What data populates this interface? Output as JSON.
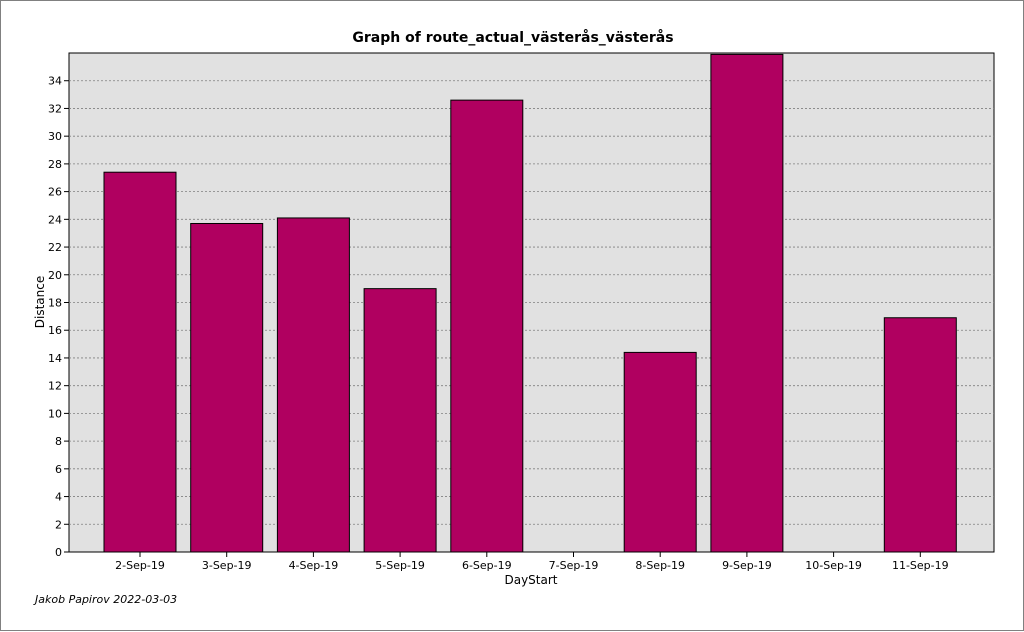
{
  "chart_data": {
    "type": "bar",
    "title": "Graph of route_actual_västerås_västerås",
    "xlabel": "DayStart",
    "ylabel": "Distance",
    "categories": [
      "2-Sep-19",
      "3-Sep-19",
      "4-Sep-19",
      "5-Sep-19",
      "6-Sep-19",
      "7-Sep-19",
      "8-Sep-19",
      "9-Sep-19",
      "10-Sep-19",
      "11-Sep-19"
    ],
    "values": [
      27.4,
      23.7,
      24.1,
      19.0,
      32.6,
      0,
      14.4,
      35.9,
      0,
      16.9
    ],
    "ylim": [
      0,
      36
    ],
    "yticks": [
      0,
      2,
      4,
      6,
      8,
      10,
      12,
      14,
      16,
      18,
      20,
      22,
      24,
      26,
      28,
      30,
      32,
      34
    ],
    "ytick_labels": [
      "0",
      "2",
      "4",
      "6",
      "8",
      "10",
      "12",
      "14",
      "16",
      "18",
      "20",
      "22",
      "24",
      "26",
      "28",
      "30",
      "32",
      "34"
    ],
    "grid": true,
    "bar_color": "#b00060",
    "plot_background": "#e1e1e1"
  },
  "footer": "Jakob Papirov 2022-03-03"
}
